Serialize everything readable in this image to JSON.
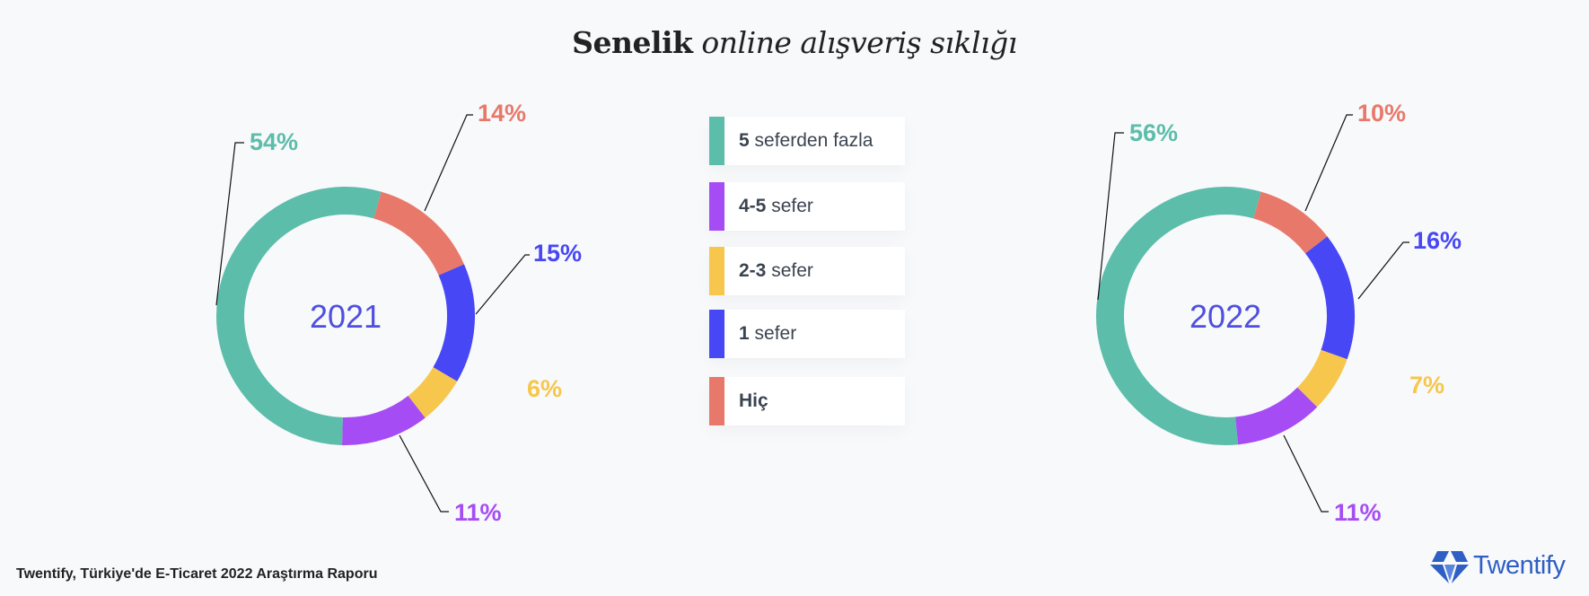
{
  "title": {
    "bold": "Senelik",
    "italic": "online alışveriş sıklığı"
  },
  "legend": [
    {
      "num": "5",
      "text": "seferden fazla",
      "color": "#5bbdaa"
    },
    {
      "num": "4-5",
      "text": "sefer",
      "color": "#a64cf5"
    },
    {
      "num": "2-3",
      "text": "sefer",
      "color": "#f6c74c"
    },
    {
      "num": "1",
      "text": "sefer",
      "color": "#4747f5"
    },
    {
      "num": "Hiç",
      "text": "",
      "color": "#e8796a"
    }
  ],
  "chart_data": [
    {
      "type": "pie",
      "center_label": "2021",
      "categories": [
        "5 seferden fazla",
        "Hiç",
        "1 sefer",
        "2-3 sefer",
        "4-5 sefer"
      ],
      "values": [
        54,
        14,
        15,
        6,
        11
      ],
      "labels": [
        "54%",
        "14%",
        "15%",
        "6%",
        "11%"
      ],
      "colors": [
        "#5bbdaa",
        "#e8796a",
        "#4747f5",
        "#f6c74c",
        "#a64cf5"
      ]
    },
    {
      "type": "pie",
      "center_label": "2022",
      "categories": [
        "5 seferden fazla",
        "Hiç",
        "1 sefer",
        "2-3 sefer",
        "4-5 sefer"
      ],
      "values": [
        56,
        10,
        16,
        7,
        11
      ],
      "labels": [
        "56%",
        "10%",
        "16%",
        "7%",
        "11%"
      ],
      "colors": [
        "#5bbdaa",
        "#e8796a",
        "#4747f5",
        "#f6c74c",
        "#a64cf5"
      ]
    }
  ],
  "center_label_color": "#4f4fe0",
  "footer": "Twentify, Türkiye'de E-Ticaret 2022 Araştırma Raporu",
  "brand": {
    "name": "Twentify",
    "color": "#2f5ec4"
  }
}
